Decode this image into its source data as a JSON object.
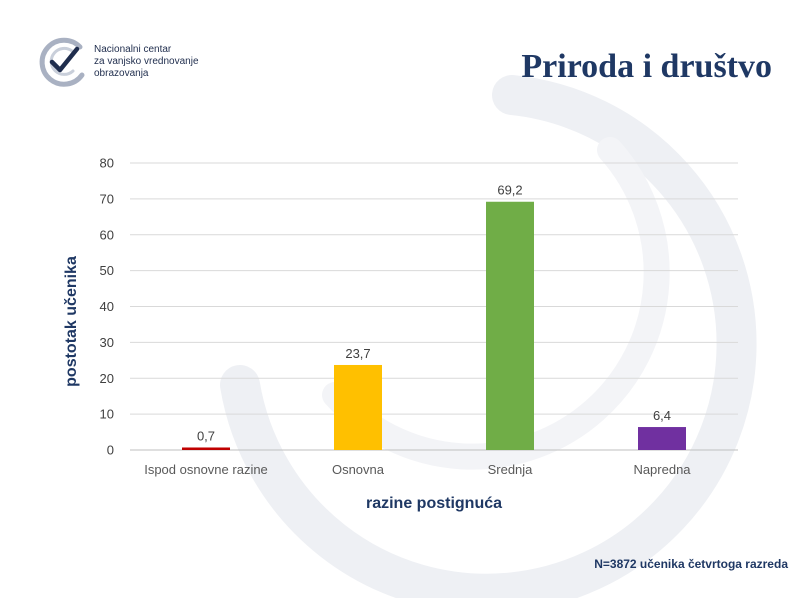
{
  "header": {
    "org_name_lines": [
      "Nacionalni centar",
      "za vanjsko vrednovanje",
      "obrazovanja"
    ],
    "title": "Priroda i društvo"
  },
  "footnote": "N=3872 učenika četvrtoga razreda",
  "chart_data": {
    "type": "bar",
    "categories": [
      "Ispod osnovne razine",
      "Osnovna",
      "Srednja",
      "Napredna"
    ],
    "values": [
      0.7,
      23.7,
      69.2,
      6.4
    ],
    "value_labels": [
      "0,7",
      "23,7",
      "69,2",
      "6,4"
    ],
    "colors": [
      "#c00000",
      "#ffc000",
      "#70ad47",
      "#7030a0"
    ],
    "xlabel": "razine postignuća",
    "ylabel": "postotak učenika",
    "ylim": [
      0,
      80
    ],
    "yticks": [
      0,
      10,
      20,
      30,
      40,
      50,
      60,
      70,
      80
    ],
    "grid": true,
    "legend": "none"
  }
}
